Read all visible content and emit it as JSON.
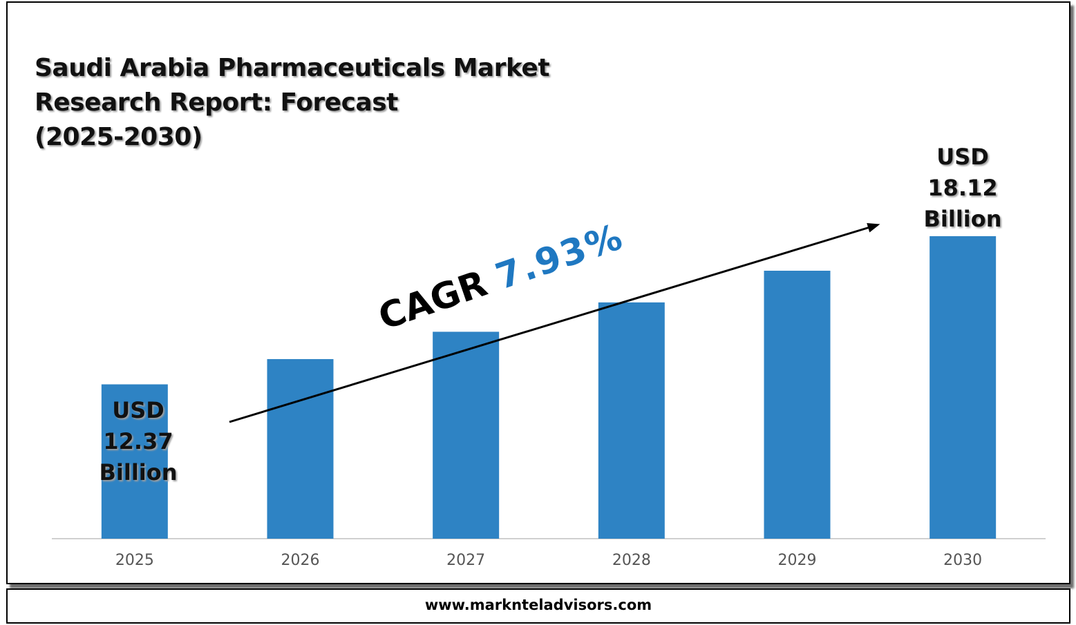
{
  "title": "Saudi Arabia Pharmaceuticals Market\nResearch Report: Forecast\n(2025-2030)",
  "annotations": {
    "start_label": {
      "line1": "USD",
      "line2": "12.37",
      "line3": "Billion"
    },
    "end_label": {
      "line1": "USD",
      "line2": "18.12",
      "line3": "Billion"
    },
    "cagr_prefix": "CAGR",
    "cagr_value": "7.93%"
  },
  "footer": {
    "url": "www.marknteladvisors.com"
  },
  "colors": {
    "bar": "#2e83c4",
    "cagr_accent": "#1f78c1",
    "axis": "#d0d0d0"
  },
  "chart_data": {
    "type": "bar",
    "categories": [
      "2025",
      "2026",
      "2027",
      "2028",
      "2029",
      "2030"
    ],
    "values": [
      12.37,
      13.35,
      14.41,
      15.55,
      16.78,
      18.12
    ],
    "unit": "USD Billion",
    "ylim": [
      6.38,
      18.12
    ],
    "grid": false,
    "legend": "none",
    "trend_arrow": true
  }
}
